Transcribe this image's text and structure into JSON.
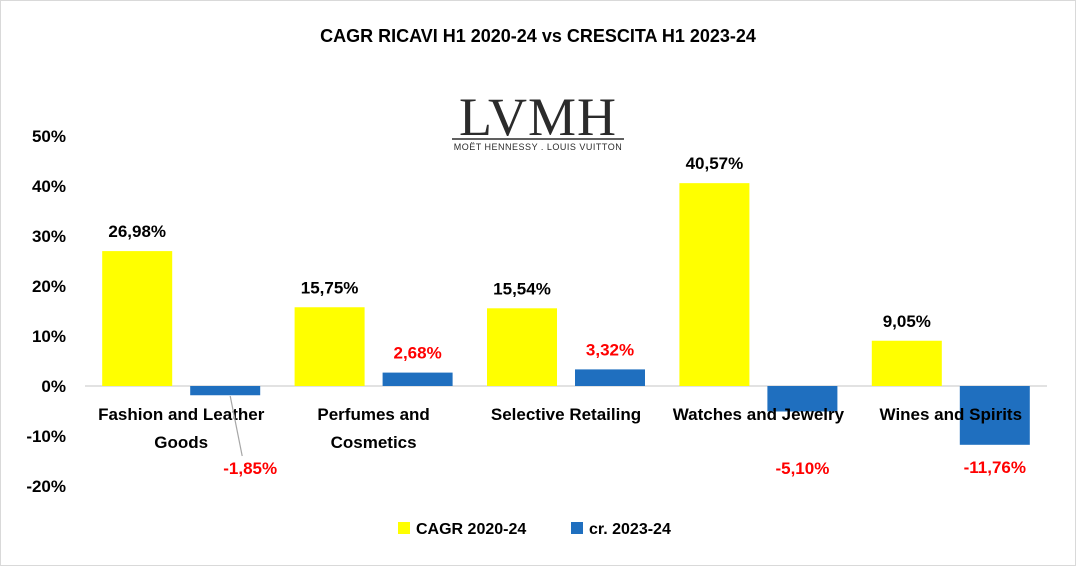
{
  "chart_data": {
    "type": "bar",
    "title": "CAGR RICAVI H1 2020-24 vs CRESCITA H1 2023-24",
    "categories": [
      [
        "Fashion and Leather",
        "Goods"
      ],
      [
        "Perfumes and",
        "Cosmetics"
      ],
      [
        "Selective Retailing"
      ],
      [
        "Watches and Jewelry"
      ],
      [
        "Wines and Spirits"
      ]
    ],
    "series": [
      {
        "name": "CAGR 2020-24",
        "color": "#FFFF00",
        "label_color": "#000000",
        "values": [
          26.98,
          15.75,
          15.54,
          40.57,
          9.05
        ],
        "labels": [
          "26,98%",
          "15,75%",
          "15,54%",
          "40,57%",
          "9,05%"
        ]
      },
      {
        "name": "cr. 2023-24",
        "color": "#1F6FBF",
        "label_color": "#FF0000",
        "values": [
          -1.85,
          2.68,
          3.32,
          -5.1,
          -11.76
        ],
        "labels": [
          "-1,85%",
          "2,68%",
          "3,32%",
          "-5,10%",
          "-11,76%"
        ]
      }
    ],
    "ylim": [
      -20,
      50
    ],
    "yticks": [
      "-20%",
      "-10%",
      "0%",
      "10%",
      "20%",
      "30%",
      "40%",
      "50%"
    ],
    "xlabel": "",
    "ylabel": "",
    "grid": false,
    "legend_position": "bottom"
  },
  "logo": {
    "main": "LVMH",
    "sub": "MOËT HENNESSY . LOUIS VUITTON"
  }
}
